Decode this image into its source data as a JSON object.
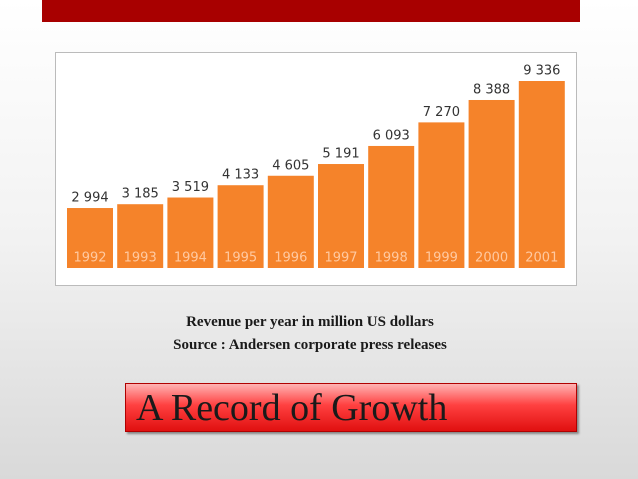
{
  "chart_data": {
    "type": "bar",
    "title": "A Record of Growth",
    "captions": [
      "Revenue per year in million US dollars",
      "Source : Andersen corporate press releases"
    ],
    "categories": [
      "1992",
      "1993",
      "1994",
      "1995",
      "1996",
      "1997",
      "1998",
      "1999",
      "2000",
      "2001"
    ],
    "values": [
      2994,
      3185,
      3519,
      4133,
      4605,
      5191,
      6093,
      7270,
      8388,
      9336
    ],
    "value_labels": [
      "2 994",
      "3 185",
      "3 519",
      "4 133",
      "4 605",
      "5 191",
      "6 093",
      "7 270",
      "8 388",
      "9 336"
    ],
    "color": "#f5832a"
  }
}
